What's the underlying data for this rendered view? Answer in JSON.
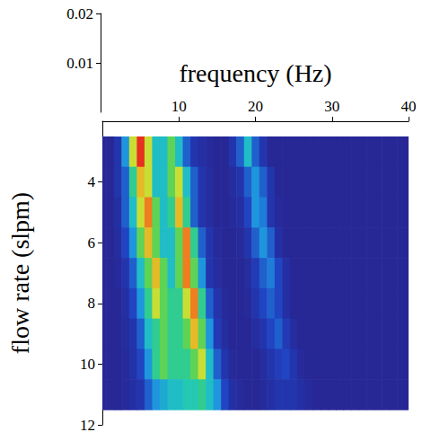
{
  "chart_data": {
    "type": "heatmap",
    "x_label": "frequency (Hz)",
    "y_label": "flow rate (slpm)",
    "xlim": [
      0,
      40
    ],
    "xticks": [
      10,
      20,
      30,
      40
    ],
    "ylim": [
      2,
      12
    ],
    "yticks": [
      4,
      6,
      8,
      10,
      12
    ],
    "zlim": [
      0,
      0.02
    ],
    "zticks": [
      0.01,
      0.02
    ],
    "colorbar": {
      "range": [
        0,
        0.01
      ],
      "colors": [
        "#2a1a80",
        "#2040c0",
        "#1e90e0",
        "#20c8c0",
        "#40d060",
        "#d8e030",
        "#f0a020",
        "#e83020"
      ]
    },
    "x": [
      0,
      1,
      2,
      3,
      4,
      5,
      6,
      7,
      8,
      9,
      10,
      11,
      12,
      13,
      14,
      15,
      16,
      17,
      18,
      19,
      20,
      21,
      22,
      23,
      24,
      25,
      26,
      27,
      28,
      29,
      30,
      31,
      32,
      33,
      34,
      35,
      36,
      37,
      38,
      39,
      40
    ],
    "y": [
      3,
      4,
      5,
      6,
      7,
      8,
      9,
      10,
      11
    ],
    "values": [
      [
        0.0005,
        0.0005,
        0.001,
        0.003,
        0.007,
        0.011,
        0.007,
        0.004,
        0.004,
        0.006,
        0.004,
        0.002,
        0.001,
        0.0008,
        0.0006,
        0.0005,
        0.0005,
        0.001,
        0.002,
        0.004,
        0.002,
        0.001,
        0.0005,
        0.0005,
        0.0005,
        0.0005,
        0.0005,
        0.0005,
        0.0005,
        0.0005,
        0.0005,
        0.0005,
        0.0005,
        0.0005,
        0.0005,
        0.0005,
        0.0005,
        0.0005,
        0.0005,
        0.0005,
        0.0005
      ],
      [
        0.0005,
        0.0005,
        0.001,
        0.002,
        0.005,
        0.008,
        0.007,
        0.004,
        0.004,
        0.006,
        0.007,
        0.004,
        0.002,
        0.001,
        0.0007,
        0.0005,
        0.0005,
        0.0007,
        0.001,
        0.002,
        0.003,
        0.002,
        0.001,
        0.0005,
        0.0005,
        0.0005,
        0.0005,
        0.0005,
        0.0005,
        0.0005,
        0.0005,
        0.0005,
        0.0005,
        0.0005,
        0.0005,
        0.0005,
        0.0005,
        0.0005,
        0.0005,
        0.0005,
        0.0005
      ],
      [
        0.0005,
        0.0005,
        0.0008,
        0.002,
        0.004,
        0.007,
        0.009,
        0.006,
        0.004,
        0.005,
        0.008,
        0.005,
        0.002,
        0.001,
        0.0007,
        0.0005,
        0.0005,
        0.0006,
        0.0008,
        0.0015,
        0.003,
        0.0025,
        0.001,
        0.0006,
        0.0005,
        0.0005,
        0.0005,
        0.0005,
        0.0005,
        0.0005,
        0.0005,
        0.0005,
        0.0005,
        0.0005,
        0.0005,
        0.0005,
        0.0005,
        0.0005,
        0.0005,
        0.0005,
        0.0005
      ],
      [
        0.0005,
        0.0005,
        0.0007,
        0.0015,
        0.003,
        0.006,
        0.008,
        0.006,
        0.004,
        0.004,
        0.006,
        0.009,
        0.005,
        0.002,
        0.001,
        0.0006,
        0.0005,
        0.0005,
        0.0006,
        0.001,
        0.002,
        0.003,
        0.002,
        0.0008,
        0.0005,
        0.0005,
        0.0005,
        0.0005,
        0.0005,
        0.0005,
        0.0005,
        0.0005,
        0.0005,
        0.0005,
        0.0005,
        0.0005,
        0.0005,
        0.0005,
        0.0005,
        0.0005,
        0.0005
      ],
      [
        0.0005,
        0.0005,
        0.0006,
        0.001,
        0.002,
        0.004,
        0.006,
        0.008,
        0.006,
        0.004,
        0.006,
        0.009,
        0.006,
        0.003,
        0.001,
        0.0007,
        0.0005,
        0.0005,
        0.0005,
        0.0007,
        0.0012,
        0.002,
        0.0025,
        0.0015,
        0.0008,
        0.0005,
        0.0005,
        0.0005,
        0.0005,
        0.0005,
        0.0005,
        0.0005,
        0.0005,
        0.0005,
        0.0005,
        0.0005,
        0.0005,
        0.0005,
        0.0005,
        0.0005,
        0.0005
      ],
      [
        0.0005,
        0.0005,
        0.0005,
        0.0008,
        0.0015,
        0.003,
        0.005,
        0.007,
        0.006,
        0.005,
        0.005,
        0.007,
        0.009,
        0.005,
        0.002,
        0.001,
        0.0006,
        0.0005,
        0.0005,
        0.0006,
        0.001,
        0.0015,
        0.002,
        0.0015,
        0.0008,
        0.0005,
        0.0005,
        0.0005,
        0.0005,
        0.0005,
        0.0005,
        0.0005,
        0.0005,
        0.0005,
        0.0005,
        0.0005,
        0.0005,
        0.0005,
        0.0005,
        0.0005,
        0.0005
      ],
      [
        0.0005,
        0.0005,
        0.0005,
        0.0007,
        0.001,
        0.002,
        0.004,
        0.005,
        0.006,
        0.005,
        0.005,
        0.006,
        0.008,
        0.006,
        0.003,
        0.0012,
        0.0007,
        0.0005,
        0.0005,
        0.0005,
        0.0007,
        0.001,
        0.0015,
        0.002,
        0.0012,
        0.0007,
        0.0005,
        0.0005,
        0.0005,
        0.0005,
        0.0005,
        0.0005,
        0.0005,
        0.0005,
        0.0005,
        0.0005,
        0.0005,
        0.0005,
        0.0005,
        0.0005,
        0.0005
      ],
      [
        0.0005,
        0.0005,
        0.0005,
        0.0006,
        0.0009,
        0.0015,
        0.003,
        0.005,
        0.006,
        0.005,
        0.005,
        0.005,
        0.006,
        0.007,
        0.004,
        0.002,
        0.001,
        0.0006,
        0.0005,
        0.0005,
        0.0005,
        0.0007,
        0.001,
        0.0013,
        0.0015,
        0.001,
        0.0006,
        0.0005,
        0.0005,
        0.0005,
        0.0005,
        0.0005,
        0.0005,
        0.0005,
        0.0005,
        0.0005,
        0.0005,
        0.0005,
        0.0005,
        0.0005,
        0.0005
      ],
      [
        0.0005,
        0.0005,
        0.0005,
        0.0006,
        0.0008,
        0.001,
        0.002,
        0.003,
        0.0035,
        0.004,
        0.004,
        0.0045,
        0.0045,
        0.005,
        0.004,
        0.003,
        0.0015,
        0.0008,
        0.0006,
        0.0005,
        0.0005,
        0.0006,
        0.0008,
        0.001,
        0.001,
        0.001,
        0.0008,
        0.0006,
        0.0005,
        0.0005,
        0.0005,
        0.0005,
        0.0005,
        0.0005,
        0.0005,
        0.0005,
        0.0005,
        0.0005,
        0.0005,
        0.0005,
        0.0005
      ]
    ]
  }
}
